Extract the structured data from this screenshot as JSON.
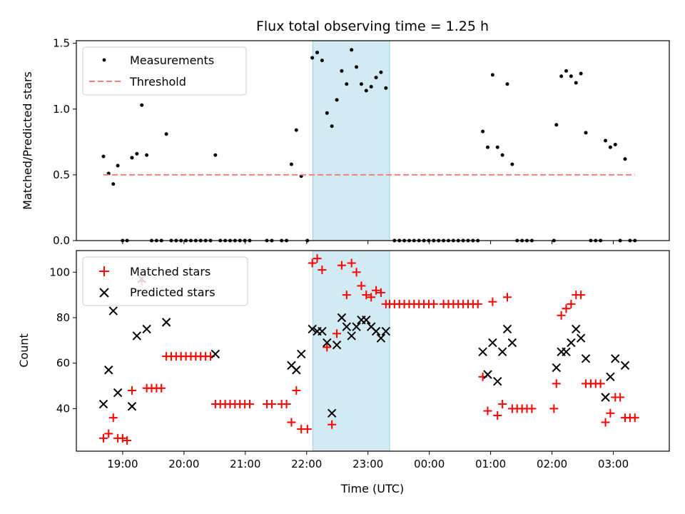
{
  "chart_data": [
    {
      "type": "scatter",
      "title": "Flux total observing time = 1.25 h",
      "xlabel": "",
      "ylabel": "Matched/Predicted stars",
      "ylim": [
        0,
        1.52
      ],
      "xlim": [
        -0.755,
        8.913
      ],
      "yticks": [
        "0.0",
        "0.5",
        "1.0",
        "1.5"
      ],
      "ytick_values": [
        0,
        0.5,
        1.0,
        1.5
      ],
      "highlight_region": {
        "x_start": 3.1,
        "x_end": 4.353,
        "color": "#add8e6"
      },
      "legend_position": "top-left",
      "series": [
        {
          "name": "Measurements",
          "style": "dot",
          "color": "#000000",
          "points": [
            [
              -0.313,
              0.64
            ],
            [
              -0.229,
              0.51
            ],
            [
              -0.153,
              0.43
            ],
            [
              -0.079,
              0.57
            ],
            [
              -0.001,
              0.0
            ],
            [
              0.072,
              0.0
            ],
            [
              0.152,
              0.63
            ],
            [
              0.232,
              0.66
            ],
            [
              0.312,
              1.03
            ],
            [
              0.392,
              0.65
            ],
            [
              0.472,
              0.0
            ],
            [
              0.552,
              0.0
            ],
            [
              0.632,
              0.0
            ],
            [
              0.712,
              0.81
            ],
            [
              0.792,
              0.0
            ],
            [
              0.872,
              0.0
            ],
            [
              0.952,
              0.0
            ],
            [
              1.032,
              0.0
            ],
            [
              1.112,
              0.0
            ],
            [
              1.192,
              0.0
            ],
            [
              1.272,
              0.0
            ],
            [
              1.352,
              0.0
            ],
            [
              1.432,
              0.0
            ],
            [
              1.512,
              0.65
            ],
            [
              1.592,
              0.0
            ],
            [
              1.672,
              0.0
            ],
            [
              1.752,
              0.0
            ],
            [
              1.832,
              0.0
            ],
            [
              1.912,
              0.0
            ],
            [
              1.992,
              0.0
            ],
            [
              2.072,
              0.0
            ],
            [
              2.352,
              0.0
            ],
            [
              2.432,
              0.0
            ],
            [
              2.592,
              0.0
            ],
            [
              2.672,
              0.0
            ],
            [
              2.752,
              0.58
            ],
            [
              2.832,
              0.84
            ],
            [
              2.912,
              0.49
            ],
            [
              3.012,
              0.0
            ],
            [
              3.092,
              1.39
            ],
            [
              3.172,
              1.43
            ],
            [
              3.252,
              1.37
            ],
            [
              3.332,
              0.97
            ],
            [
              3.412,
              0.87
            ],
            [
              3.492,
              1.07
            ],
            [
              3.572,
              1.29
            ],
            [
              3.652,
              1.19
            ],
            [
              3.732,
              1.45
            ],
            [
              3.812,
              1.32
            ],
            [
              3.892,
              1.19
            ],
            [
              3.972,
              1.14
            ],
            [
              4.052,
              1.17
            ],
            [
              4.132,
              1.24
            ],
            [
              4.212,
              1.28
            ],
            [
              4.292,
              1.16
            ],
            [
              4.432,
              0.0
            ],
            [
              4.512,
              0.0
            ],
            [
              4.592,
              0.0
            ],
            [
              4.672,
              0.0
            ],
            [
              4.752,
              0.0
            ],
            [
              4.832,
              0.0
            ],
            [
              4.912,
              0.0
            ],
            [
              4.992,
              0.0
            ],
            [
              5.072,
              0.0
            ],
            [
              5.152,
              0.0
            ],
            [
              5.232,
              0.0
            ],
            [
              5.312,
              0.0
            ],
            [
              5.392,
              0.0
            ],
            [
              5.472,
              0.0
            ],
            [
              5.552,
              0.0
            ],
            [
              5.632,
              0.0
            ],
            [
              5.712,
              0.0
            ],
            [
              5.792,
              0.0
            ],
            [
              5.872,
              0.83
            ],
            [
              5.952,
              0.71
            ],
            [
              6.032,
              1.26
            ],
            [
              6.112,
              0.71
            ],
            [
              6.192,
              0.65
            ],
            [
              6.272,
              1.19
            ],
            [
              6.352,
              0.58
            ],
            [
              6.432,
              0.0
            ],
            [
              6.512,
              0.0
            ],
            [
              6.592,
              0.0
            ],
            [
              6.672,
              0.0
            ],
            [
              7.032,
              0.0
            ],
            [
              7.072,
              0.88
            ],
            [
              7.152,
              1.25
            ],
            [
              7.232,
              1.29
            ],
            [
              7.312,
              1.25
            ],
            [
              7.392,
              1.2
            ],
            [
              7.472,
              1.27
            ],
            [
              7.552,
              0.82
            ],
            [
              7.632,
              0.0
            ],
            [
              7.712,
              0.0
            ],
            [
              7.792,
              0.0
            ],
            [
              7.872,
              0.76
            ],
            [
              7.952,
              0.71
            ],
            [
              8.032,
              0.73
            ],
            [
              8.112,
              0.0
            ],
            [
              8.192,
              0.62
            ],
            [
              8.272,
              0.0
            ],
            [
              8.352,
              0.0
            ]
          ]
        },
        {
          "name": "Threshold",
          "style": "dashed-line",
          "color": "#f08080",
          "points": [
            [
              -0.313,
              0.5
            ],
            [
              8.352,
              0.5
            ]
          ]
        }
      ]
    },
    {
      "type": "scatter",
      "title": "",
      "xlabel": "Time (UTC)",
      "ylabel": "Count",
      "ylim": [
        21.3,
        109.5
      ],
      "xlim": [
        -0.755,
        8.913
      ],
      "yticks": [
        "40",
        "60",
        "80",
        "100"
      ],
      "ytick_values": [
        40,
        60,
        80,
        100
      ],
      "xticks": [
        "19:00",
        "20:00",
        "21:00",
        "22:00",
        "23:00",
        "00:00",
        "01:00",
        "02:00",
        "03:00"
      ],
      "xtick_values": [
        0,
        1,
        2,
        3,
        4,
        5,
        6,
        7,
        8
      ],
      "highlight_region": {
        "x_start": 3.1,
        "x_end": 4.353,
        "color": "#add8e6"
      },
      "legend_position": "top-left",
      "series": [
        {
          "name": "Matched stars",
          "marker": "plus",
          "color": "#ff0000",
          "points": [
            [
              -0.313,
              27
            ],
            [
              -0.229,
              29
            ],
            [
              -0.153,
              36
            ],
            [
              -0.079,
              27
            ],
            [
              -0.001,
              27
            ],
            [
              0.072,
              26
            ],
            [
              0.152,
              48
            ],
            [
              0.312,
              96
            ],
            [
              0.392,
              49
            ],
            [
              0.472,
              49
            ],
            [
              0.552,
              49
            ],
            [
              0.632,
              49
            ],
            [
              0.712,
              63
            ],
            [
              0.792,
              63
            ],
            [
              0.872,
              63
            ],
            [
              0.952,
              63
            ],
            [
              1.032,
              63
            ],
            [
              1.112,
              63
            ],
            [
              1.192,
              63
            ],
            [
              1.272,
              63
            ],
            [
              1.352,
              63
            ],
            [
              1.432,
              63
            ],
            [
              1.512,
              42
            ],
            [
              1.592,
              42
            ],
            [
              1.672,
              42
            ],
            [
              1.752,
              42
            ],
            [
              1.832,
              42
            ],
            [
              1.912,
              42
            ],
            [
              1.992,
              42
            ],
            [
              2.072,
              42
            ],
            [
              2.352,
              42
            ],
            [
              2.432,
              42
            ],
            [
              2.592,
              42
            ],
            [
              2.672,
              42
            ],
            [
              2.752,
              34
            ],
            [
              2.832,
              48
            ],
            [
              2.912,
              31
            ],
            [
              3.012,
              31
            ],
            [
              3.092,
              104
            ],
            [
              3.172,
              106
            ],
            [
              3.252,
              101
            ],
            [
              3.332,
              67
            ],
            [
              3.412,
              33
            ],
            [
              3.492,
              73
            ],
            [
              3.572,
              103
            ],
            [
              3.652,
              90
            ],
            [
              3.732,
              104
            ],
            [
              3.812,
              100
            ],
            [
              3.892,
              94
            ],
            [
              3.972,
              90
            ],
            [
              4.052,
              89
            ],
            [
              4.132,
              92
            ],
            [
              4.212,
              91
            ],
            [
              4.292,
              86
            ],
            [
              4.352,
              86
            ],
            [
              4.432,
              86
            ],
            [
              4.512,
              86
            ],
            [
              4.592,
              86
            ],
            [
              4.672,
              86
            ],
            [
              4.752,
              86
            ],
            [
              4.832,
              86
            ],
            [
              4.912,
              86
            ],
            [
              4.992,
              86
            ],
            [
              5.072,
              86
            ],
            [
              5.232,
              86
            ],
            [
              5.312,
              86
            ],
            [
              5.392,
              86
            ],
            [
              5.472,
              86
            ],
            [
              5.552,
              86
            ],
            [
              5.632,
              86
            ],
            [
              5.712,
              86
            ],
            [
              5.792,
              86
            ],
            [
              5.872,
              54
            ],
            [
              5.952,
              39
            ],
            [
              6.032,
              87
            ],
            [
              6.112,
              37
            ],
            [
              6.192,
              42
            ],
            [
              6.272,
              89
            ],
            [
              6.352,
              40
            ],
            [
              6.432,
              40
            ],
            [
              6.512,
              40
            ],
            [
              6.592,
              40
            ],
            [
              6.672,
              40
            ],
            [
              7.032,
              40
            ],
            [
              7.072,
              51
            ],
            [
              7.152,
              81
            ],
            [
              7.232,
              84
            ],
            [
              7.312,
              86
            ],
            [
              7.392,
              90
            ],
            [
              7.472,
              90
            ],
            [
              7.552,
              51
            ],
            [
              7.632,
              51
            ],
            [
              7.712,
              51
            ],
            [
              7.792,
              51
            ],
            [
              7.872,
              34
            ],
            [
              7.952,
              38
            ],
            [
              8.032,
              45
            ],
            [
              8.112,
              45
            ],
            [
              8.192,
              36
            ],
            [
              8.272,
              36
            ],
            [
              8.352,
              36
            ]
          ]
        },
        {
          "name": "Predicted stars",
          "marker": "x",
          "color": "#000000",
          "points": [
            [
              -0.313,
              42
            ],
            [
              -0.229,
              57
            ],
            [
              -0.153,
              83
            ],
            [
              -0.079,
              47
            ],
            [
              0.152,
              41
            ],
            [
              0.232,
              72
            ],
            [
              0.312,
              97
            ],
            [
              0.392,
              75
            ],
            [
              0.712,
              78
            ],
            [
              1.512,
              64
            ],
            [
              2.752,
              59
            ],
            [
              2.832,
              57
            ],
            [
              2.912,
              64
            ],
            [
              3.092,
              75
            ],
            [
              3.172,
              74
            ],
            [
              3.252,
              74
            ],
            [
              3.332,
              69
            ],
            [
              3.412,
              38
            ],
            [
              3.492,
              68
            ],
            [
              3.572,
              80
            ],
            [
              3.652,
              76
            ],
            [
              3.732,
              72
            ],
            [
              3.812,
              76
            ],
            [
              3.892,
              79
            ],
            [
              3.972,
              79
            ],
            [
              4.052,
              76
            ],
            [
              4.132,
              74
            ],
            [
              4.212,
              71
            ],
            [
              4.292,
              74
            ],
            [
              5.872,
              65
            ],
            [
              5.952,
              55
            ],
            [
              6.032,
              69
            ],
            [
              6.112,
              52
            ],
            [
              6.192,
              65
            ],
            [
              6.272,
              75
            ],
            [
              6.352,
              69
            ],
            [
              7.072,
              58
            ],
            [
              7.152,
              65
            ],
            [
              7.232,
              65
            ],
            [
              7.312,
              69
            ],
            [
              7.392,
              75
            ],
            [
              7.472,
              71
            ],
            [
              7.552,
              62
            ],
            [
              7.872,
              45
            ],
            [
              7.952,
              54
            ],
            [
              8.032,
              62
            ],
            [
              8.192,
              59
            ]
          ]
        }
      ]
    }
  ]
}
